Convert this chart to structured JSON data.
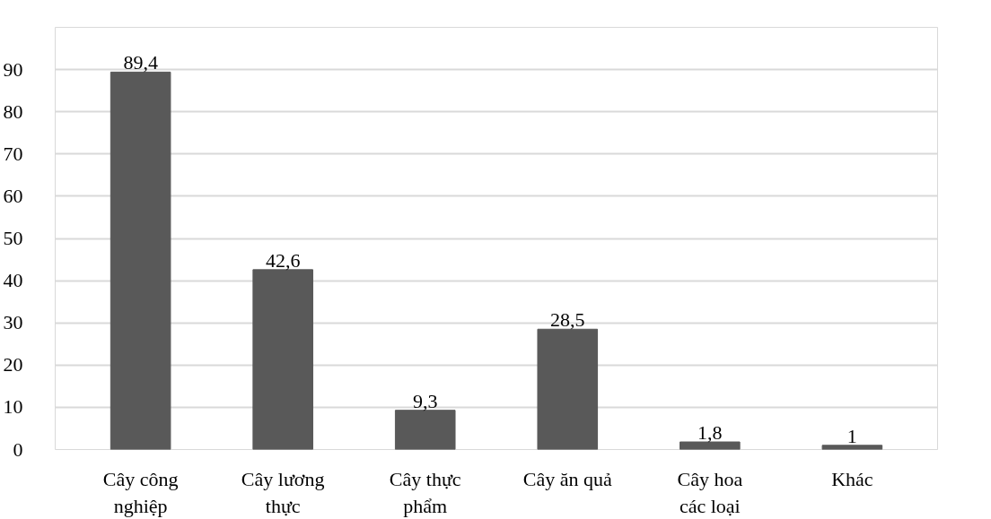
{
  "chart_data": {
    "type": "bar",
    "categories": [
      "Cây công nghiệp",
      "Cây lương thực",
      "Cây thực phẩm",
      "Cây ăn quả",
      "Cây hoa các loại",
      "Khác"
    ],
    "values": [
      89.4,
      42.6,
      9.3,
      28.5,
      1.8,
      1
    ],
    "value_labels": [
      "89,4",
      "42,6",
      "9,3",
      "28,5",
      "1,8",
      "1"
    ],
    "color": "#595959",
    "ylim": [
      0,
      100
    ],
    "yticks": [
      0,
      10,
      20,
      30,
      40,
      50,
      60,
      70,
      80,
      90
    ],
    "grid": "y"
  }
}
